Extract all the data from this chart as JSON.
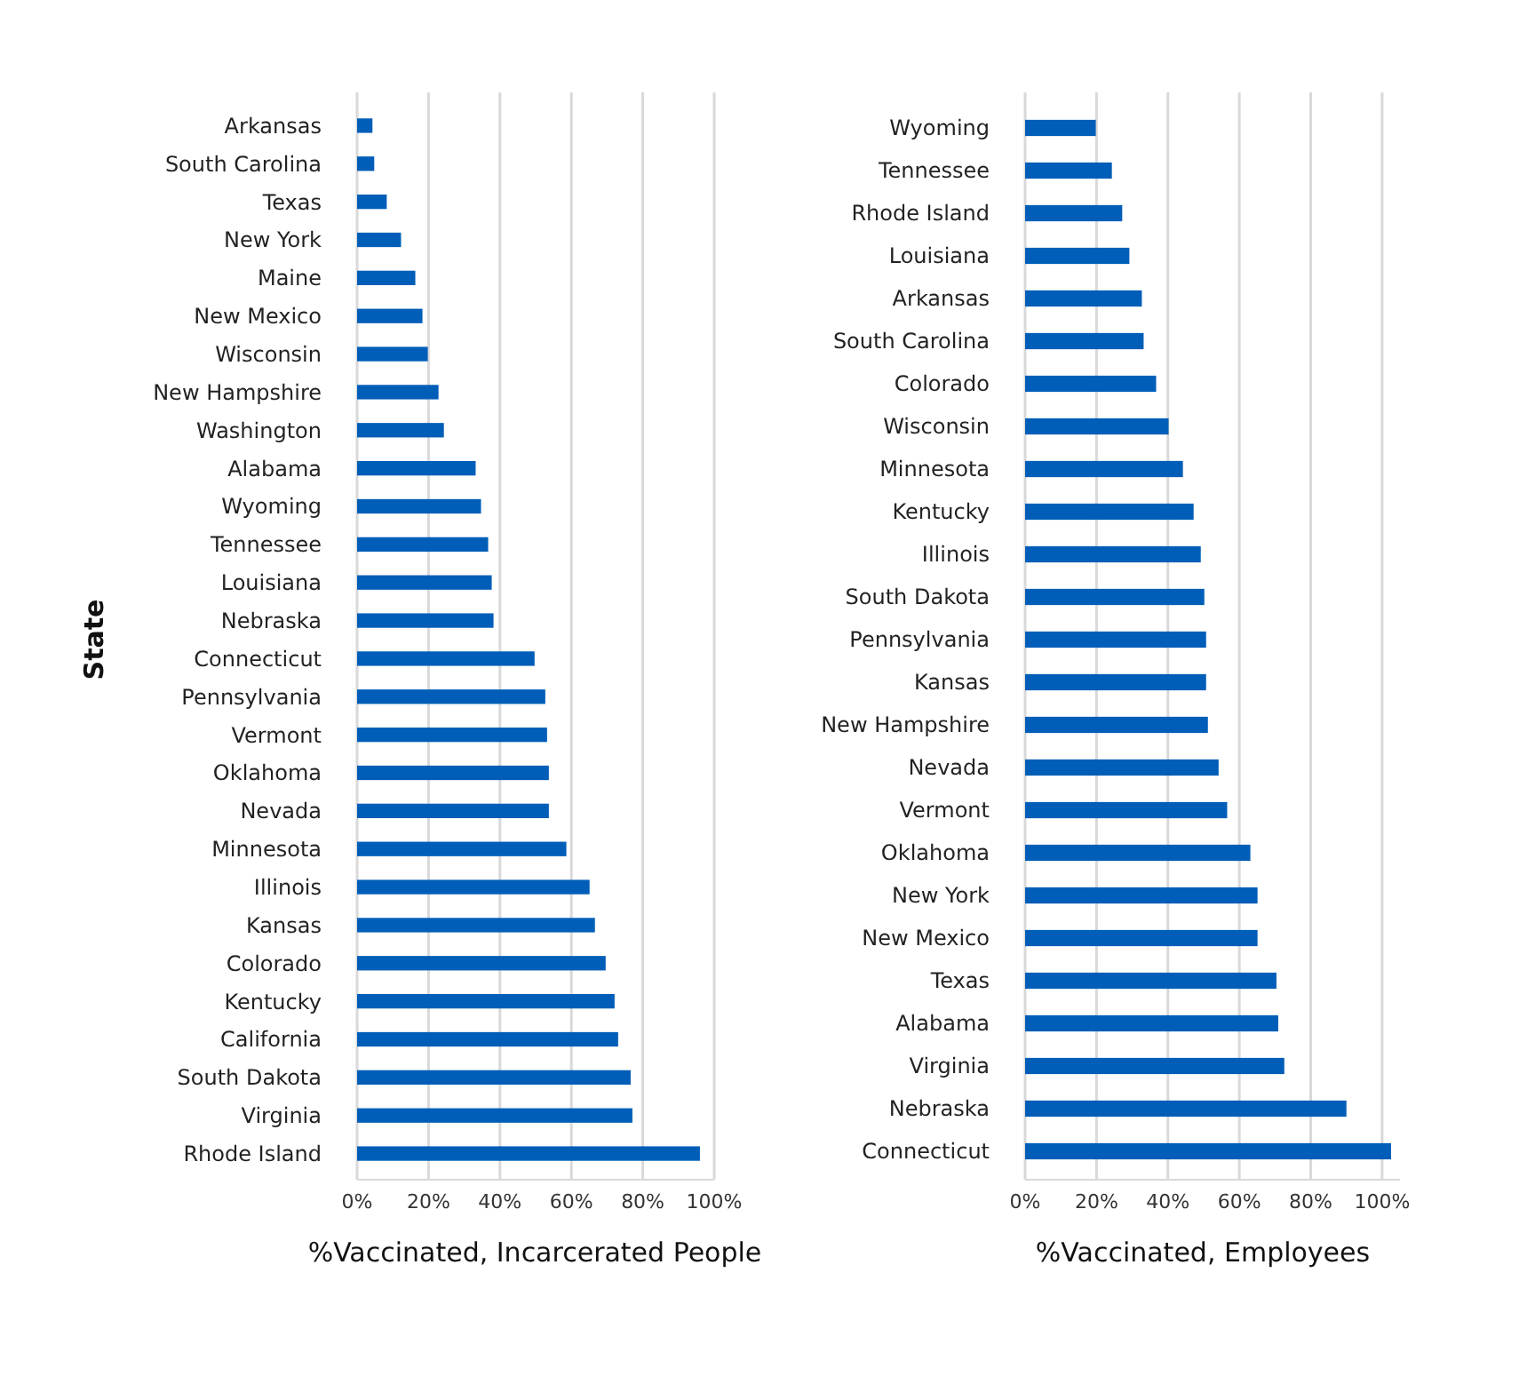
{
  "chart_data": [
    {
      "type": "bar",
      "orientation": "horizontal",
      "ylabel": "State",
      "xlabel": "%Vaccinated, Incarcerated People",
      "categories": [
        "Arkansas",
        "South Carolina",
        "Texas",
        "New York",
        "Maine",
        "New Mexico",
        "Wisconsin",
        "New Hampshire",
        "Washington",
        "Alabama",
        "Wyoming",
        "Tennessee",
        "Louisiana",
        "Nebraska",
        "Connecticut",
        "Pennsylvania",
        "Vermont",
        "Oklahoma",
        "Nevada",
        "Minnesota",
        "Illinois",
        "Kansas",
        "Colorado",
        "Kentucky",
        "California",
        "South Dakota",
        "Virginia",
        "Rhode Island"
      ],
      "values": [
        4.3,
        4.8,
        8.3,
        12.3,
        16.3,
        18.3,
        19.8,
        22.8,
        24.3,
        33.2,
        34.7,
        36.7,
        37.7,
        38.2,
        49.7,
        52.7,
        53.2,
        53.7,
        53.7,
        58.6,
        65.1,
        66.6,
        69.6,
        72.1,
        73.1,
        76.6,
        77.1,
        96
      ],
      "color": "#005eb8",
      "xlim": [
        0,
        100
      ],
      "xticks": [
        {
          "value": 0,
          "label": "0%"
        },
        {
          "value": 20,
          "label": "20%"
        },
        {
          "value": 40,
          "label": "40%"
        },
        {
          "value": 60,
          "label": "60%"
        },
        {
          "value": 80,
          "label": "80%"
        },
        {
          "value": 100,
          "label": "100%"
        }
      ],
      "grid": "x"
    },
    {
      "type": "bar",
      "orientation": "horizontal",
      "xlabel": "%Vaccinated, Employees",
      "categories": [
        "Wyoming",
        "Tennessee",
        "Rhode Island",
        "Louisiana",
        "Arkansas",
        "South Carolina",
        "Colorado",
        "Wisconsin",
        "Minnesota",
        "Kentucky",
        "Illinois",
        "South Dakota",
        "Pennsylvania",
        "Kansas",
        "New Hampshire",
        "Nevada",
        "Vermont",
        "Oklahoma",
        "New York",
        "New Mexico",
        "Texas",
        "Alabama",
        "Virginia",
        "Nebraska",
        "Connecticut"
      ],
      "values": [
        19.8,
        24.3,
        27.2,
        29.2,
        32.7,
        33.2,
        36.7,
        40.2,
        44.2,
        47.2,
        49.2,
        50.2,
        50.7,
        50.7,
        51.2,
        54.2,
        56.6,
        63.1,
        65.1,
        65.1,
        70.4,
        70.9,
        72.6,
        90,
        102.5
      ],
      "color": "#005eb8",
      "xlim": [
        0,
        105
      ],
      "xticks": [
        {
          "value": 0,
          "label": "0%"
        },
        {
          "value": 20,
          "label": "20%"
        },
        {
          "value": 40,
          "label": "40%"
        },
        {
          "value": 60,
          "label": "60%"
        },
        {
          "value": 80,
          "label": "80%"
        },
        {
          "value": 100,
          "label": "100%"
        }
      ],
      "grid": "x"
    }
  ]
}
